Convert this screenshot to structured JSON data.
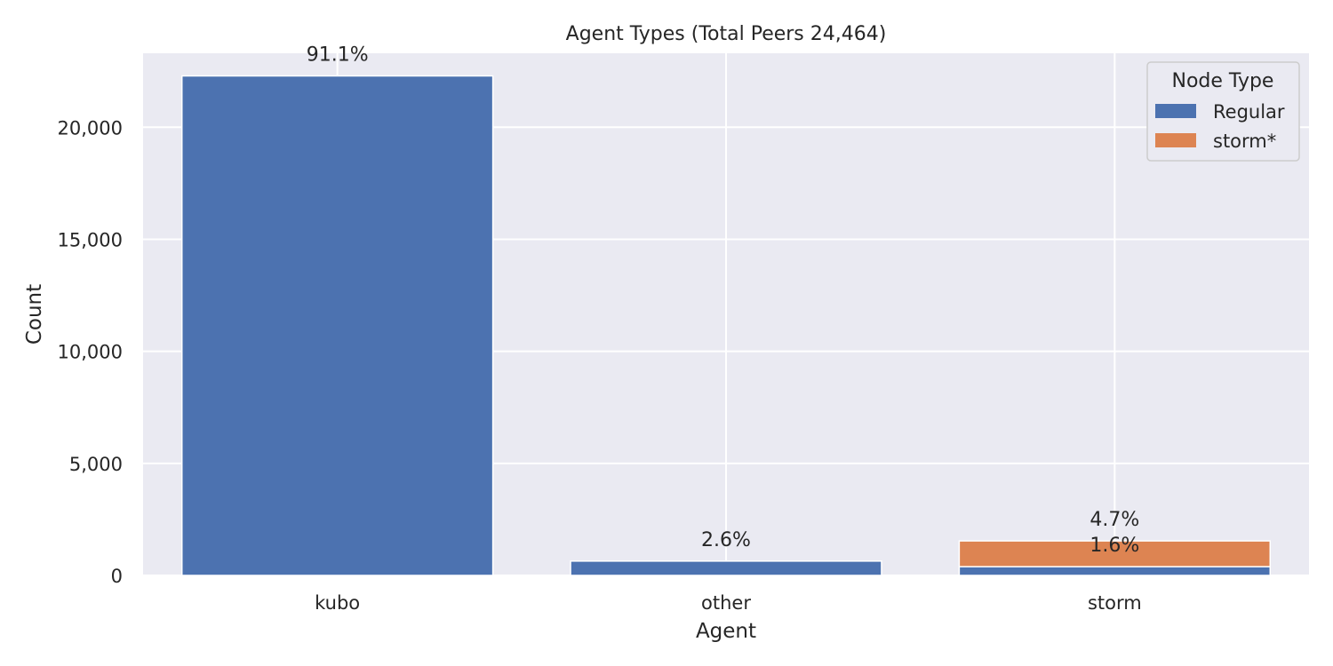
{
  "chart_data": {
    "type": "bar",
    "stacked": true,
    "title": "Agent Types (Total Peers 24,464)",
    "xlabel": "Agent",
    "ylabel": "Count",
    "categories": [
      "kubo",
      "other",
      "storm"
    ],
    "ylim": [
      0,
      23300
    ],
    "yticks": [
      0,
      5000,
      10000,
      15000,
      20000
    ],
    "ytick_labels": [
      "0",
      "5,000",
      "10,000",
      "15,000",
      "20,000"
    ],
    "grid": true,
    "legend": {
      "title": "Node Type",
      "placement": "top-right"
    },
    "series": [
      {
        "name": "Regular",
        "color": "#4c72b0",
        "values": [
          22290,
          640,
          390
        ],
        "labels": [
          "91.1%",
          "2.6%",
          "1.6%"
        ]
      },
      {
        "name": "storm*",
        "color": "#dd8452",
        "values": [
          0,
          0,
          1150
        ],
        "labels": [
          "",
          "",
          "4.7%"
        ]
      }
    ]
  }
}
